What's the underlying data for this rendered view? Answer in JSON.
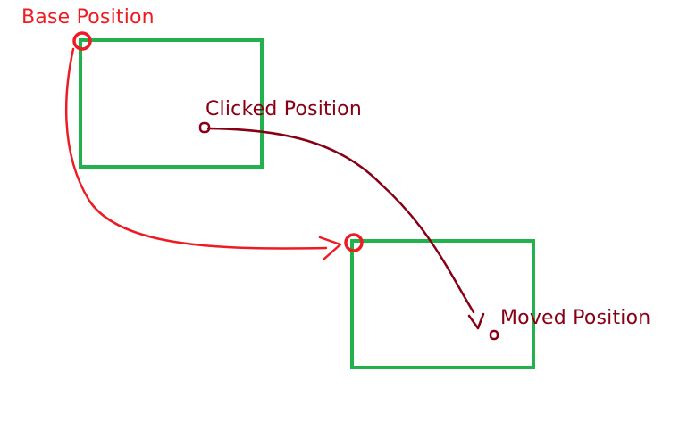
{
  "labels": {
    "base": "Base Position",
    "clicked": "Clicked Position",
    "moved": "Moved Position"
  },
  "colors": {
    "background": "#ffffff",
    "box": "#22b14c",
    "base_annotation": "#ed1c24",
    "click_annotation": "#880015"
  }
}
